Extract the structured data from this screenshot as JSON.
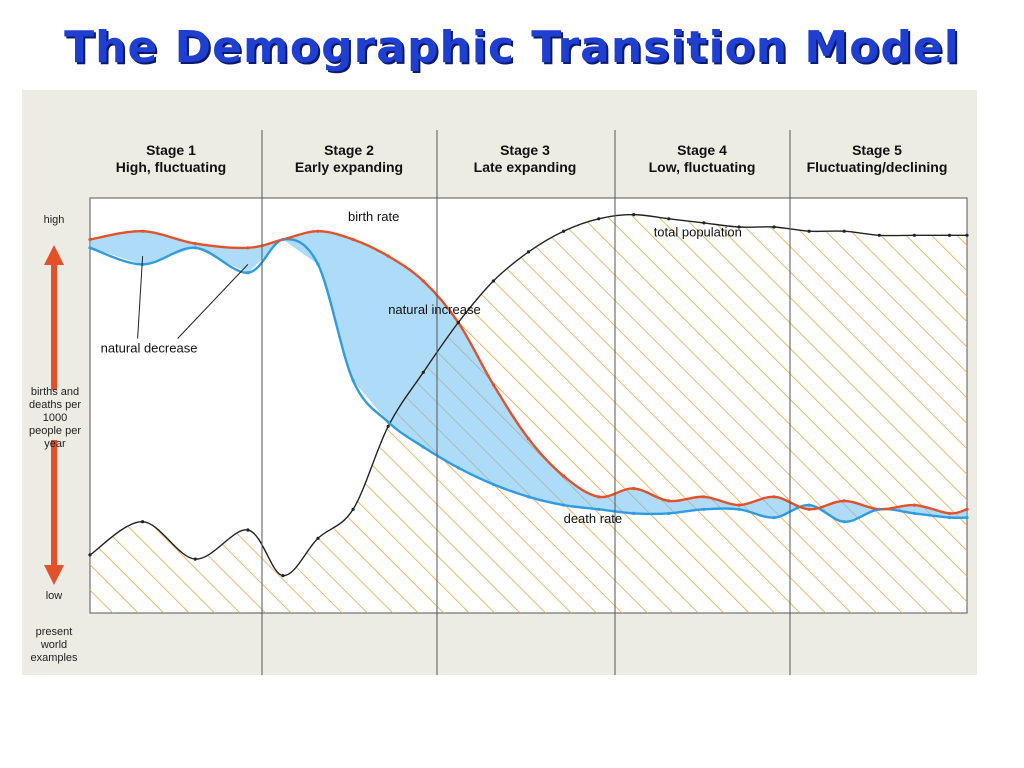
{
  "title": "The Demographic Transition Model",
  "chart_data": {
    "type": "line",
    "stages": [
      {
        "number": "Stage 1",
        "description": "High, fluctuating"
      },
      {
        "number": "Stage 2",
        "description": "Early expanding"
      },
      {
        "number": "Stage 3",
        "description": "Late expanding"
      },
      {
        "number": "Stage 4",
        "description": "Low, fluctuating"
      },
      {
        "number": "Stage 5",
        "description": "Fluctuating/declining"
      }
    ],
    "y_axis": {
      "high_label": "high",
      "low_label": "low",
      "label": "births and deaths per 1000 people per year",
      "ylim": [
        0,
        100
      ]
    },
    "bottom_label": "present world examples",
    "x": [
      0,
      6,
      12,
      18,
      22,
      26,
      30,
      34,
      38,
      42,
      46,
      50,
      54,
      58,
      62,
      66,
      70,
      74,
      78,
      82,
      86,
      90,
      94,
      98,
      100
    ],
    "series": [
      {
        "name": "birth rate",
        "color": "#e4502a",
        "values": [
          90,
          92,
          89,
          88,
          90,
          92,
          90,
          86,
          80,
          70,
          55,
          42,
          33,
          28,
          30,
          27,
          28,
          26,
          28,
          25,
          27,
          25,
          26,
          24,
          25
        ]
      },
      {
        "name": "death rate",
        "color": "#2f9be0",
        "values": [
          88,
          84,
          88,
          82,
          90,
          84,
          56,
          46,
          40,
          35,
          31,
          28,
          26,
          25,
          24,
          24,
          25,
          25,
          23,
          26,
          22,
          25,
          24,
          23,
          23
        ]
      },
      {
        "name": "total population",
        "color": "#222222",
        "values": [
          14,
          22,
          13,
          20,
          9,
          18,
          25,
          45,
          58,
          70,
          80,
          87,
          92,
          95,
          96,
          95,
          94,
          93,
          93,
          92,
          92,
          91,
          91,
          91,
          91
        ]
      }
    ],
    "annotations": [
      "natural decrease",
      "natural increase"
    ],
    "legend": "none"
  }
}
